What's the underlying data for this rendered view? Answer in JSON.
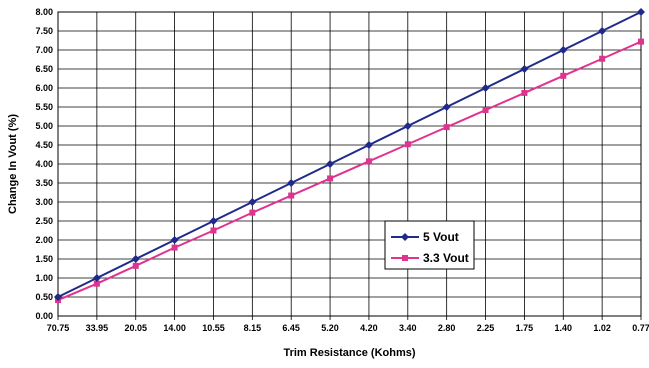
{
  "chart_data": {
    "type": "line",
    "xlabel": "Trim Resistance (Kohms)",
    "ylabel": "Change In Vout (%)",
    "categories": [
      "70.75",
      "33.95",
      "20.05",
      "14.00",
      "10.55",
      "8.15",
      "6.45",
      "5.20",
      "4.20",
      "3.40",
      "2.80",
      "2.25",
      "1.75",
      "1.40",
      "1.02",
      "0.77"
    ],
    "y_ticks": [
      "0.00",
      "0.50",
      "1.00",
      "1.50",
      "2.00",
      "2.50",
      "3.00",
      "3.50",
      "4.00",
      "4.50",
      "5.00",
      "5.50",
      "6.00",
      "6.50",
      "7.00",
      "7.50",
      "8.00"
    ],
    "ylim": [
      0,
      8
    ],
    "grid": true,
    "legend_position": "center-right",
    "series": [
      {
        "name": "5 Vout",
        "color": "#1f2a8a",
        "marker": "diamond",
        "values": [
          0.5,
          1.0,
          1.5,
          2.0,
          2.5,
          3.0,
          3.5,
          4.0,
          4.5,
          5.0,
          5.5,
          6.0,
          6.5,
          7.0,
          7.5,
          8.0
        ]
      },
      {
        "name": "3.3 Vout",
        "color": "#e0338f",
        "marker": "square",
        "values": [
          0.42,
          0.85,
          1.32,
          1.8,
          2.25,
          2.72,
          3.17,
          3.62,
          4.07,
          4.52,
          4.97,
          5.42,
          5.87,
          6.32,
          6.77,
          7.22
        ]
      }
    ]
  }
}
